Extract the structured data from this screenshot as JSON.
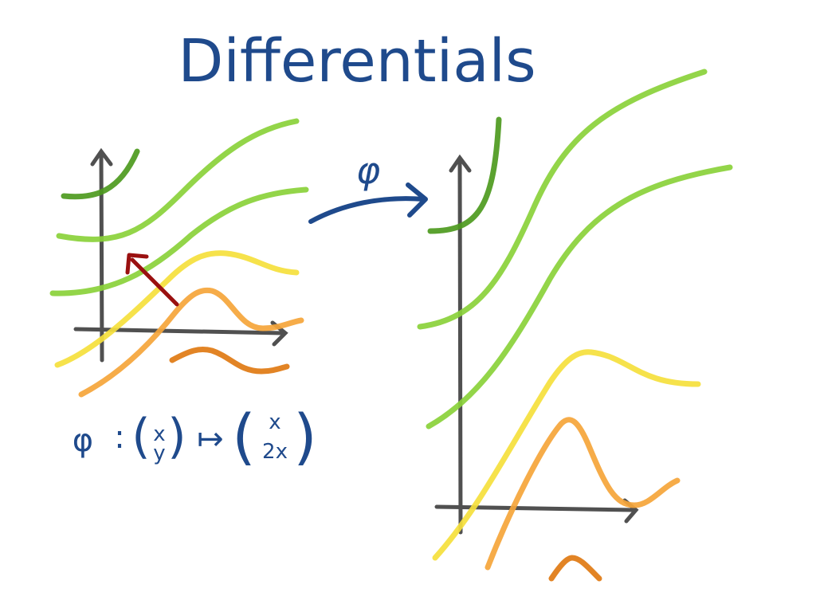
{
  "title": "Differentials",
  "map_label": "φ",
  "formula": {
    "phi": "φ",
    "colon": ":",
    "domain_top": "x",
    "domain_bottom": "y",
    "maps_to": "↦",
    "image_top": "x",
    "image_bottom": "2x"
  },
  "colors": {
    "ink_blue": "#1f4a8c",
    "axis_gray": "#505050",
    "dark_green": "#4d9a1e",
    "light_green": "#8ad13a",
    "yellow": "#f5df3c",
    "light_orange": "#f5a53a",
    "dark_orange": "#e07a12",
    "vector_red": "#9a1010"
  }
}
